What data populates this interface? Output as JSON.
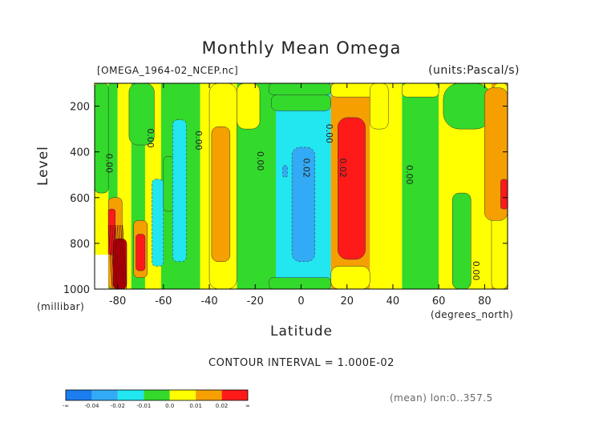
{
  "chart_data": {
    "type": "heatmap",
    "title": "Monthly Mean Omega",
    "dataset_label": "[OMEGA_1964-02_NCEP.nc]",
    "units_label": "(units:Pascal/s)",
    "xlabel": "Latitude",
    "xlabel_units": "(degrees_north)",
    "ylabel": "Level",
    "ylabel_units": "(millibar)",
    "xlim": [
      -90,
      90
    ],
    "ylim": [
      1000,
      100
    ],
    "x_ticks": [
      "-80",
      "-60",
      "-40",
      "-20",
      "0",
      "20",
      "40",
      "60",
      "80"
    ],
    "y_ticks": [
      "200",
      "400",
      "600",
      "800",
      "1000"
    ],
    "contour_interval": "CONTOUR INTERVAL = 1.000E-02",
    "averaging_note": "(mean) lon:0..357.5",
    "contour_labels": [
      {
        "text": "0.00",
        "lat": -85,
        "lev": 450
      },
      {
        "text": "0.00",
        "lat": -67,
        "lev": 340
      },
      {
        "text": "0.00",
        "lat": -46,
        "lev": 350
      },
      {
        "text": "0.00",
        "lat": -19,
        "lev": 440
      },
      {
        "text": "0.02",
        "lat": 1,
        "lev": 470
      },
      {
        "text": "0.00",
        "lat": 11,
        "lev": 320
      },
      {
        "text": "0.02",
        "lat": 17,
        "lev": 470
      },
      {
        "text": "0.00",
        "lat": 46,
        "lev": 500
      },
      {
        "text": "0.00",
        "lat": 75,
        "lev": 920
      }
    ],
    "legend": {
      "end_labels": [
        "-∞",
        "∞"
      ],
      "tick_labels": [
        "-0.04",
        "-0.02",
        "-0.01",
        "0.0",
        "0.01",
        "0.02"
      ],
      "bins": [
        "#1b7df0",
        "#33aaf5",
        "#22e6f0",
        "#33d92b",
        "#ffff00",
        "#f5a000",
        "#ff1a1a"
      ]
    },
    "bands": [
      {
        "lat0": -90,
        "lat1": -84,
        "color": "#ffff00"
      },
      {
        "lat0": -84,
        "lat1": -80,
        "color": "#33d92b"
      },
      {
        "lat0": -80,
        "lat1": -74,
        "color": "#ffff00"
      },
      {
        "lat0": -74,
        "lat1": -68,
        "color": "#33d92b"
      },
      {
        "lat0": -68,
        "lat1": -61,
        "color": "#ffff00"
      },
      {
        "lat0": -61,
        "lat1": -44,
        "color": "#33d92b"
      },
      {
        "lat0": -44,
        "lat1": -28,
        "color": "#ffff00"
      },
      {
        "lat0": -28,
        "lat1": -11,
        "color": "#33d92b"
      },
      {
        "lat0": -11,
        "lat1": 13,
        "color": "#22e6f0"
      },
      {
        "lat0": 13,
        "lat1": 30,
        "color": "#f5a000"
      },
      {
        "lat0": 30,
        "lat1": 44,
        "color": "#ffff00"
      },
      {
        "lat0": 44,
        "lat1": 60,
        "color": "#33d92b"
      },
      {
        "lat0": 60,
        "lat1": 83,
        "color": "#ffff00"
      },
      {
        "lat0": 83,
        "lat1": 90,
        "color": "#f5a000"
      }
    ],
    "regions": [
      {
        "lat0": -90,
        "lat1": -84,
        "lev0": 100,
        "lev1": 580,
        "color": "#33d92b"
      },
      {
        "lat0": -75,
        "lat1": -64,
        "lev0": 100,
        "lev1": 370,
        "color": "#33d92b"
      },
      {
        "lat0": -40,
        "lat1": -28,
        "lev0": 100,
        "lev1": 1000,
        "color": "#ffff00"
      },
      {
        "lat0": -28,
        "lat1": -18,
        "lev0": 100,
        "lev1": 300,
        "color": "#ffff00"
      },
      {
        "lat0": -14,
        "lat1": 13,
        "lev0": 100,
        "lev1": 150,
        "color": "#33d92b"
      },
      {
        "lat0": -13,
        "lat1": 13,
        "lev0": 150,
        "lev1": 220,
        "color": "#33d92b"
      },
      {
        "lat0": -14,
        "lat1": 13,
        "lev0": 950,
        "lev1": 1000,
        "color": "#33d92b"
      },
      {
        "lat0": 13,
        "lat1": 33,
        "lev0": 100,
        "lev1": 160,
        "color": "#ffff00"
      },
      {
        "lat0": 13,
        "lat1": 30,
        "lev0": 900,
        "lev1": 1000,
        "color": "#ffff00"
      },
      {
        "lat0": 30,
        "lat1": 38,
        "lev0": 100,
        "lev1": 300,
        "color": "#ffff00"
      },
      {
        "lat0": 44,
        "lat1": 60,
        "lev0": 100,
        "lev1": 160,
        "color": "#ffff00"
      },
      {
        "lat0": 62,
        "lat1": 83,
        "lev0": 100,
        "lev1": 300,
        "color": "#33d92b"
      },
      {
        "lat0": 84,
        "lat1": 90,
        "lev0": 100,
        "lev1": 330,
        "color": "#ffff00"
      },
      {
        "lat0": 83,
        "lat1": 90,
        "lev0": 650,
        "lev1": 1000,
        "color": "#ffff00"
      },
      {
        "lat0": -65,
        "lat1": -60,
        "lev0": 520,
        "lev1": 900,
        "color": "#22e6f0"
      },
      {
        "lat0": -60,
        "lat1": -55,
        "lev0": 420,
        "lev1": 660,
        "color": "#33d92b"
      },
      {
        "lat0": -56,
        "lat1": -50,
        "lev0": 260,
        "lev1": 880,
        "color": "#22e6f0"
      },
      {
        "lat0": -39,
        "lat1": -31,
        "lev0": 290,
        "lev1": 880,
        "color": "#f5a000"
      },
      {
        "lat0": -4,
        "lat1": 6,
        "lev0": 380,
        "lev1": 880,
        "color": "#33aaf5"
      },
      {
        "lat0": -8,
        "lat1": -6,
        "lev0": 460,
        "lev1": 510,
        "color": "#33aaf5"
      },
      {
        "lat0": 16,
        "lat1": 28,
        "lev0": 250,
        "lev1": 870,
        "color": "#ff1a1a"
      },
      {
        "lat0": 80,
        "lat1": 90,
        "lev0": 120,
        "lev1": 700,
        "color": "#f5a000"
      },
      {
        "lat0": 87,
        "lat1": 90,
        "lev0": 520,
        "lev1": 650,
        "color": "#ff1a1a"
      },
      {
        "lat0": 66,
        "lat1": 74,
        "lev0": 580,
        "lev1": 1000,
        "color": "#33d92b"
      },
      {
        "lat0": -84,
        "lat1": -78,
        "lev0": 600,
        "lev1": 1000,
        "color": "#f5a000"
      },
      {
        "lat0": -84,
        "lat1": -81,
        "lev0": 650,
        "lev1": 850,
        "color": "#ff1a1a"
      },
      {
        "lat0": -82,
        "lat1": -76,
        "lev0": 780,
        "lev1": 1000,
        "color": "#c0000a"
      },
      {
        "lat0": -73,
        "lat1": -67,
        "lev0": 700,
        "lev1": 950,
        "color": "#f5a000"
      },
      {
        "lat0": -72,
        "lat1": -68,
        "lev0": 760,
        "lev1": 920,
        "color": "#ff1a1a"
      }
    ]
  }
}
